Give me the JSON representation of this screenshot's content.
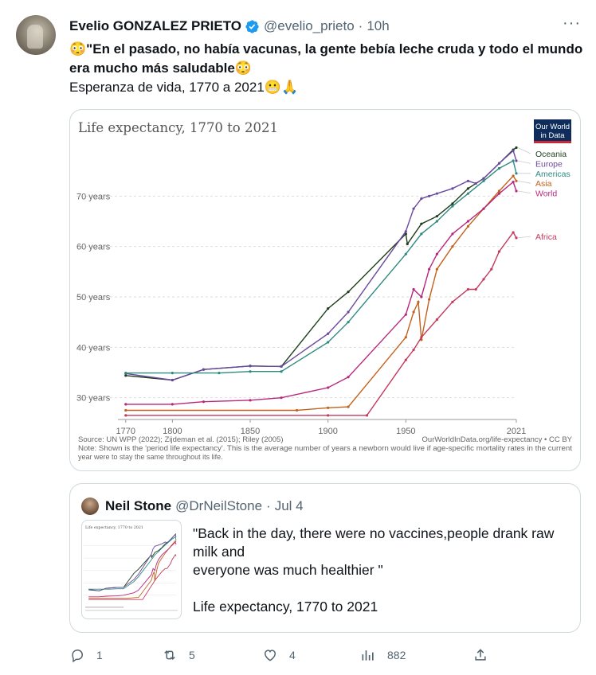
{
  "tweet": {
    "display_name": "Evelio GONZALEZ PRIETO",
    "handle": "@evelio_prieto",
    "separator": "·",
    "time": "10h",
    "more_label": "···",
    "emoji_flushed": "😳",
    "emoji_grimace": "😬",
    "emoji_pray": "🙏",
    "text_bold": "\"En el pasado, no había vacunas, la gente bebía leche cruda y todo el mundo era mucho más saludable",
    "text_line": "Esperanza de vida, 1770 a 2021"
  },
  "chart_data": {
    "type": "line",
    "title": "Life expectancy, 1770 to 2021",
    "logo_text": [
      "Our World",
      "in Data"
    ],
    "ylabel_ticks": [
      "30 years",
      "40 years",
      "50 years",
      "60 years",
      "70 years"
    ],
    "y_ticks": [
      30,
      40,
      50,
      60,
      70
    ],
    "x_ticks": [
      "1770",
      "1800",
      "1850",
      "1900",
      "1950",
      "2021"
    ],
    "x_tick_values": [
      1770,
      1800,
      1850,
      1900,
      1950,
      2021
    ],
    "xlim": [
      1765,
      2021
    ],
    "ylim": [
      26,
      80
    ],
    "grid": true,
    "legend_position": "right",
    "source": "Source: UN WPP (2022); Zijdeman et al. (2015); Riley (2005)",
    "credit": "OurWorldInData.org/life-expectancy • CC BY",
    "note_line1": "Note: Shown is the 'period life expectancy'. This is the average number of years a newborn would live if age-specific mortality rates in the current",
    "note_line2": "year were to stay the same throughout its life.",
    "series": [
      {
        "name": "Oceania",
        "color": "#1d3d1b",
        "points": [
          [
            1770,
            34.4
          ],
          [
            1800,
            33.5
          ],
          [
            1820,
            35.6
          ],
          [
            1850,
            36.3
          ],
          [
            1870,
            36.2
          ],
          [
            1900,
            47.7
          ],
          [
            1913,
            51.0
          ],
          [
            1950,
            62.5
          ],
          [
            1951,
            60.5
          ],
          [
            1960,
            64.5
          ],
          [
            1970,
            66.0
          ],
          [
            1980,
            68.5
          ],
          [
            1990,
            71.5
          ],
          [
            2000,
            73.5
          ],
          [
            2010,
            76.5
          ],
          [
            2019,
            79.2
          ],
          [
            2021,
            79.6
          ]
        ]
      },
      {
        "name": "Europe",
        "color": "#6b4a9e",
        "points": [
          [
            1770,
            34.8
          ],
          [
            1800,
            33.5
          ],
          [
            1820,
            35.6
          ],
          [
            1850,
            36.3
          ],
          [
            1870,
            36.2
          ],
          [
            1900,
            42.7
          ],
          [
            1913,
            47.0
          ],
          [
            1950,
            63.0
          ],
          [
            1955,
            67.5
          ],
          [
            1960,
            69.5
          ],
          [
            1965,
            70.0
          ],
          [
            1970,
            70.5
          ],
          [
            1980,
            71.5
          ],
          [
            1990,
            73.0
          ],
          [
            1995,
            72.5
          ],
          [
            2000,
            73.5
          ],
          [
            2010,
            76.5
          ],
          [
            2019,
            79.0
          ],
          [
            2021,
            77.0
          ]
        ]
      },
      {
        "name": "Americas",
        "color": "#2e8b80",
        "points": [
          [
            1770,
            34.9
          ],
          [
            1800,
            34.9
          ],
          [
            1830,
            34.9
          ],
          [
            1850,
            35.2
          ],
          [
            1870,
            35.2
          ],
          [
            1900,
            41.0
          ],
          [
            1913,
            45.0
          ],
          [
            1950,
            58.5
          ],
          [
            1960,
            62.5
          ],
          [
            1970,
            65.0
          ],
          [
            1980,
            68.0
          ],
          [
            1990,
            70.5
          ],
          [
            2000,
            73.0
          ],
          [
            2010,
            75.5
          ],
          [
            2019,
            77.0
          ],
          [
            2021,
            74.5
          ]
        ]
      },
      {
        "name": "Asia",
        "color": "#c1621e",
        "points": [
          [
            1770,
            27.5
          ],
          [
            1880,
            27.5
          ],
          [
            1900,
            28.0
          ],
          [
            1913,
            28.2
          ],
          [
            1950,
            42.0
          ],
          [
            1955,
            47.0
          ],
          [
            1958,
            49.0
          ],
          [
            1960,
            41.5
          ],
          [
            1965,
            49.5
          ],
          [
            1970,
            55.5
          ],
          [
            1980,
            60.0
          ],
          [
            1990,
            64.0
          ],
          [
            2000,
            67.5
          ],
          [
            2010,
            71.0
          ],
          [
            2019,
            74.0
          ],
          [
            2021,
            73.0
          ]
        ]
      },
      {
        "name": "World",
        "color": "#b8277e",
        "points": [
          [
            1770,
            28.7
          ],
          [
            1800,
            28.7
          ],
          [
            1820,
            29.2
          ],
          [
            1850,
            29.5
          ],
          [
            1870,
            30.0
          ],
          [
            1900,
            32.0
          ],
          [
            1913,
            34.1
          ],
          [
            1950,
            46.5
          ],
          [
            1955,
            51.5
          ],
          [
            1960,
            50.0
          ],
          [
            1965,
            55.5
          ],
          [
            1970,
            58.5
          ],
          [
            1980,
            62.5
          ],
          [
            1990,
            65.0
          ],
          [
            2000,
            67.5
          ],
          [
            2010,
            70.5
          ],
          [
            2019,
            72.8
          ],
          [
            2021,
            71.0
          ]
        ]
      },
      {
        "name": "Africa",
        "color": "#c43b5e",
        "points": [
          [
            1770,
            26.5
          ],
          [
            1900,
            26.5
          ],
          [
            1925,
            26.5
          ],
          [
            1950,
            37.5
          ],
          [
            1955,
            39.5
          ],
          [
            1960,
            42.0
          ],
          [
            1970,
            45.5
          ],
          [
            1980,
            49.0
          ],
          [
            1990,
            51.5
          ],
          [
            1995,
            51.5
          ],
          [
            2000,
            53.5
          ],
          [
            2005,
            55.5
          ],
          [
            2010,
            59.0
          ],
          [
            2019,
            62.8
          ],
          [
            2021,
            61.7
          ]
        ]
      }
    ]
  },
  "quote": {
    "display_name": "Neil Stone",
    "handle": "@DrNeilStone",
    "separator": "·",
    "date": "Jul 4",
    "thumb_title": "Life expectancy, 1770 to 2021",
    "text": "\"Back in the day, there were no vaccines,people drank raw milk and\neveryone was much healthier \"\n\nLife expectancy, 1770 to 2021"
  },
  "actions": {
    "reply_count": "1",
    "retweet_count": "5",
    "like_count": "4",
    "views_count": "882"
  }
}
